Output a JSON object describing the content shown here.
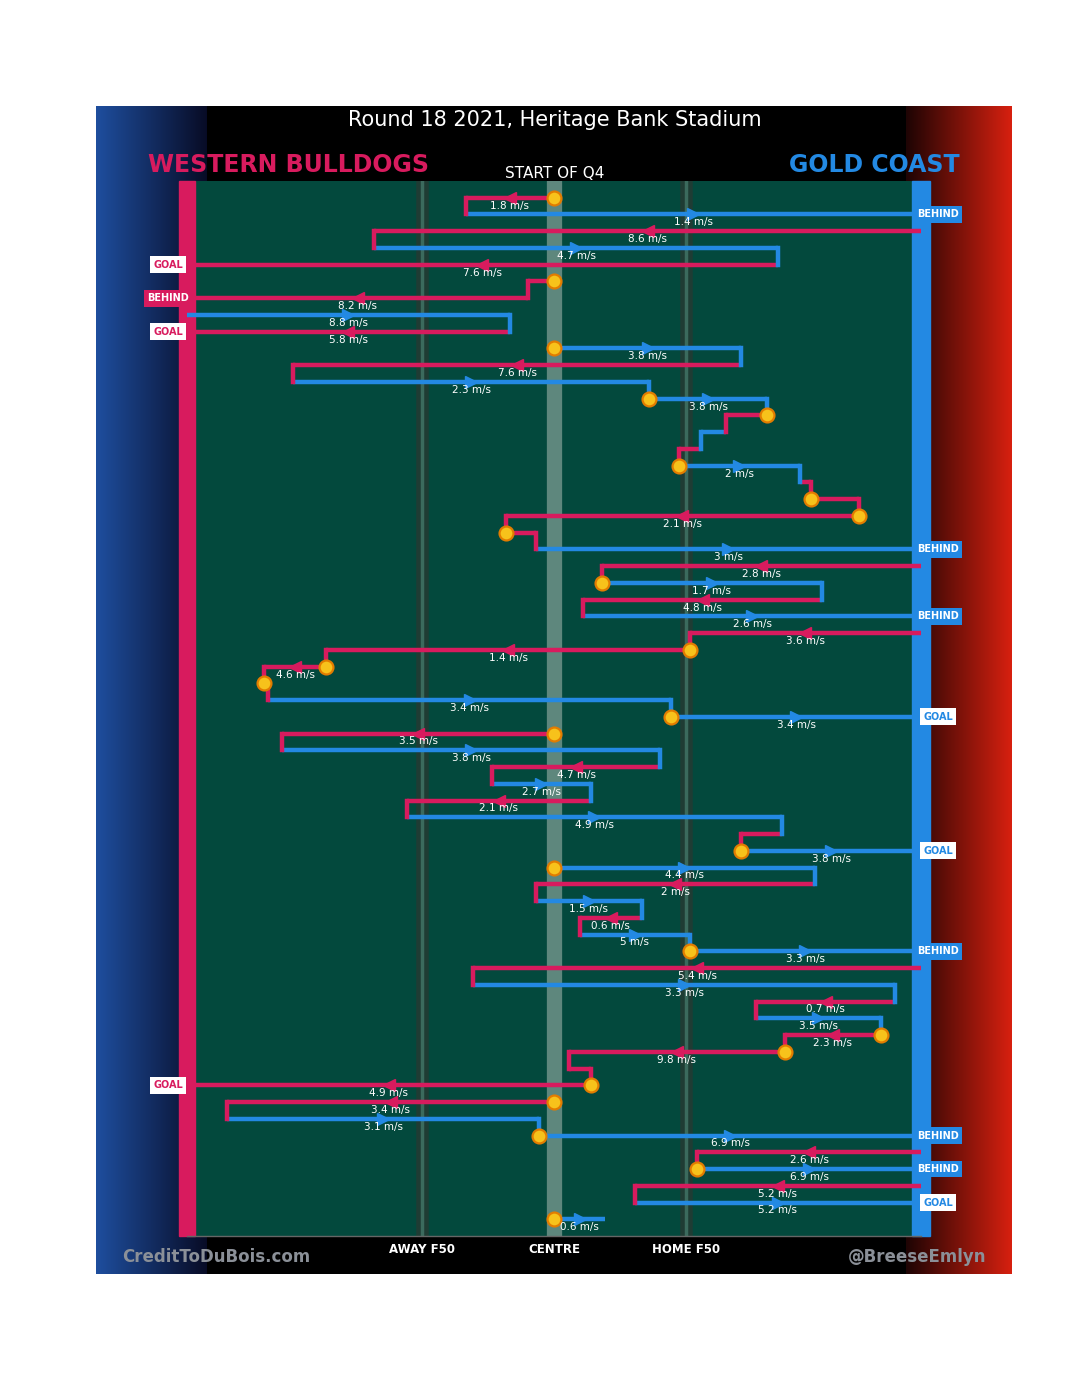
{
  "chart_data": {
    "type": "chain",
    "title": "Round 18 2021, Heritage Bank Stadium",
    "subtitle": "START OF Q4",
    "series": [
      {
        "name": "WESTERN BULLDOGS",
        "color": "#d81b5e"
      },
      {
        "name": "GOLD COAST",
        "color": "#2389e3"
      }
    ],
    "xlim": [
      0,
      100
    ],
    "xticks": [
      {
        "value": 32,
        "label": "AWAY F50"
      },
      {
        "value": 50,
        "label": "CENTRE"
      },
      {
        "value": 68,
        "label": "HOME F50"
      }
    ],
    "grid": true,
    "tick_labels": "x",
    "credits": [
      "CreditToDuBois.com",
      "@BreeseEmlyn"
    ],
    "segments": [
      {
        "team": "WESTERN BULLDOGS",
        "from": 50,
        "to": 38,
        "speed": "1.8 m/s",
        "start": true
      },
      {
        "team": "GOLD COAST",
        "from": 38,
        "to": 100,
        "speed": "1.4 m/s",
        "result": "BEHIND"
      },
      {
        "team": "WESTERN BULLDOGS",
        "from": 100,
        "to": 25.5,
        "speed": "8.6 m/s"
      },
      {
        "team": "GOLD COAST",
        "from": 25.5,
        "to": 80.5,
        "speed": "4.7 m/s"
      },
      {
        "team": "WESTERN BULLDOGS",
        "from": 80.5,
        "to": 0,
        "speed": "7.6 m/s",
        "result": "GOAL"
      },
      {
        "team": "WESTERN BULLDOGS",
        "from": 50,
        "to": 46.5,
        "start": true
      },
      {
        "team": "WESTERN BULLDOGS",
        "from": 46.5,
        "to": 0,
        "speed": "8.2 m/s",
        "result": "BEHIND"
      },
      {
        "team": "GOLD COAST",
        "from": 0,
        "to": 44,
        "speed": "8.8 m/s"
      },
      {
        "team": "WESTERN BULLDOGS",
        "from": 44,
        "to": 0,
        "speed": "5.8 m/s",
        "result": "GOAL"
      },
      {
        "team": "GOLD COAST",
        "from": 50,
        "to": 75.5,
        "speed": "3.8 m/s",
        "start": true
      },
      {
        "team": "WESTERN BULLDOGS",
        "from": 75.5,
        "to": 14.5,
        "speed": "7.6 m/s"
      },
      {
        "team": "GOLD COAST",
        "from": 14.5,
        "to": 63,
        "speed": "2.3 m/s"
      },
      {
        "team": "GOLD COAST",
        "from": 63,
        "to": 79,
        "speed": "3.8 m/s",
        "start": true
      },
      {
        "team": "WESTERN BULLDOGS",
        "from": 79,
        "to": 73.5,
        "start": true
      },
      {
        "team": "GOLD COAST",
        "from": 73.5,
        "to": 70
      },
      {
        "team": "WESTERN BULLDOGS",
        "from": 70,
        "to": 67
      },
      {
        "team": "GOLD COAST",
        "from": 67,
        "to": 83.5,
        "speed": "2 m/s",
        "start": true
      },
      {
        "team": "WESTERN BULLDOGS",
        "from": 83.5,
        "to": 85
      },
      {
        "team": "WESTERN BULLDOGS",
        "from": 85,
        "to": 91.5,
        "start": true
      },
      {
        "team": "WESTERN BULLDOGS",
        "from": 91.5,
        "to": 43.5,
        "speed": "2.1 m/s",
        "start": true
      },
      {
        "team": "WESTERN BULLDOGS",
        "from": 43.5,
        "to": 47.5,
        "start": true
      },
      {
        "team": "GOLD COAST",
        "from": 47.5,
        "to": 100,
        "speed": "3 m/s",
        "result": "BEHIND"
      },
      {
        "team": "WESTERN BULLDOGS",
        "from": 100,
        "to": 56.5,
        "speed": "2.8 m/s"
      },
      {
        "team": "GOLD COAST",
        "from": 56.5,
        "to": 86.5,
        "speed": "1.7 m/s",
        "start": true
      },
      {
        "team": "WESTERN BULLDOGS",
        "from": 86.5,
        "to": 54,
        "speed": "4.8 m/s"
      },
      {
        "team": "GOLD COAST",
        "from": 54,
        "to": 100,
        "speed": "2.6 m/s",
        "result": "BEHIND"
      },
      {
        "team": "WESTERN BULLDOGS",
        "from": 100,
        "to": 68.5,
        "speed": "3.6 m/s"
      },
      {
        "team": "WESTERN BULLDOGS",
        "from": 68.5,
        "to": 19,
        "speed": "1.4 m/s",
        "start": true
      },
      {
        "team": "WESTERN BULLDOGS",
        "from": 19,
        "to": 10.5,
        "speed": "4.6 m/s",
        "start": true
      },
      {
        "team": "WESTERN BULLDOGS",
        "from": 10.5,
        "to": 11,
        "start": true
      },
      {
        "team": "GOLD COAST",
        "from": 11,
        "to": 66,
        "speed": "3.4 m/s"
      },
      {
        "team": "GOLD COAST",
        "from": 66,
        "to": 100,
        "speed": "3.4 m/s",
        "start": true,
        "result": "GOAL"
      },
      {
        "team": "WESTERN BULLDOGS",
        "from": 50,
        "to": 13,
        "speed": "3.5 m/s",
        "start": true
      },
      {
        "team": "GOLD COAST",
        "from": 13,
        "to": 64.5,
        "speed": "3.8 m/s"
      },
      {
        "team": "WESTERN BULLDOGS",
        "from": 64.5,
        "to": 41.5,
        "speed": "4.7 m/s"
      },
      {
        "team": "GOLD COAST",
        "from": 41.5,
        "to": 55,
        "speed": "2.7 m/s"
      },
      {
        "team": "WESTERN BULLDOGS",
        "from": 55,
        "to": 30,
        "speed": "2.1 m/s"
      },
      {
        "team": "GOLD COAST",
        "from": 30,
        "to": 81,
        "speed": "4.9 m/s"
      },
      {
        "team": "WESTERN BULLDOGS",
        "from": 81,
        "to": 75.5
      },
      {
        "team": "GOLD COAST",
        "from": 75.5,
        "to": 100,
        "speed": "3.8 m/s",
        "start": true,
        "result": "GOAL"
      },
      {
        "team": "GOLD COAST",
        "from": 50,
        "to": 85.5,
        "speed": "4.4 m/s",
        "start": true
      },
      {
        "team": "WESTERN BULLDOGS",
        "from": 85.5,
        "to": 47.5,
        "speed": "2 m/s"
      },
      {
        "team": "GOLD COAST",
        "from": 47.5,
        "to": 62,
        "speed": "1.5 m/s"
      },
      {
        "team": "WESTERN BULLDOGS",
        "from": 62,
        "to": 53.5,
        "speed": "0.6 m/s"
      },
      {
        "team": "GOLD COAST",
        "from": 53.5,
        "to": 68.5,
        "speed": "5 m/s"
      },
      {
        "team": "GOLD COAST",
        "from": 68.5,
        "to": 100,
        "speed": "3.3 m/s",
        "start": true,
        "result": "BEHIND"
      },
      {
        "team": "WESTERN BULLDOGS",
        "from": 100,
        "to": 39,
        "speed": "5.4 m/s"
      },
      {
        "team": "GOLD COAST",
        "from": 39,
        "to": 96.5,
        "speed": "3.3 m/s"
      },
      {
        "team": "WESTERN BULLDOGS",
        "from": 96.5,
        "to": 77.5,
        "speed": "0.7 m/s"
      },
      {
        "team": "GOLD COAST",
        "from": 77.5,
        "to": 94.5,
        "speed": "3.5 m/s"
      },
      {
        "team": "WESTERN BULLDOGS",
        "from": 94.5,
        "to": 81.5,
        "speed": "2.3 m/s",
        "start": true
      },
      {
        "team": "WESTERN BULLDOGS",
        "from": 81.5,
        "to": 52,
        "speed": "9.8 m/s",
        "start": true
      },
      {
        "team": "WESTERN BULLDOGS",
        "from": 52,
        "to": 55
      },
      {
        "team": "WESTERN BULLDOGS",
        "from": 55,
        "to": 0,
        "speed": "4.9 m/s",
        "start": true,
        "result": "GOAL"
      },
      {
        "team": "WESTERN BULLDOGS",
        "from": 50,
        "to": 5.5,
        "speed": "3.4 m/s",
        "start": true
      },
      {
        "team": "GOLD COAST",
        "from": 5.5,
        "to": 48,
        "speed": "3.1 m/s"
      },
      {
        "team": "GOLD COAST",
        "from": 48,
        "to": 100,
        "speed": "6.9 m/s",
        "start": true,
        "result": "BEHIND"
      },
      {
        "team": "WESTERN BULLDOGS",
        "from": 100,
        "to": 69.5,
        "speed": "2.6 m/s"
      },
      {
        "team": "GOLD COAST",
        "from": 69.5,
        "to": 100,
        "speed": "6.9 m/s",
        "start": true,
        "result": "BEHIND"
      },
      {
        "team": "WESTERN BULLDOGS",
        "from": 100,
        "to": 61,
        "speed": "5.2 m/s"
      },
      {
        "team": "GOLD COAST",
        "from": 61,
        "to": 100,
        "speed": "5.2 m/s",
        "result": "GOAL"
      },
      {
        "team": "GOLD COAST",
        "from": 50,
        "to": 57,
        "speed": "0.6 m/s",
        "start": true
      }
    ]
  }
}
